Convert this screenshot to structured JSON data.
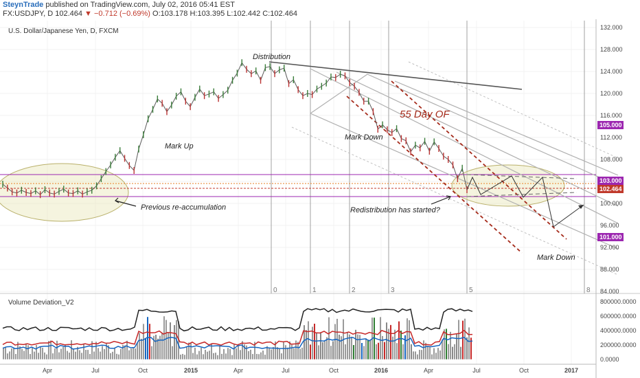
{
  "header": {
    "author": "SteynTrade",
    "published": " published on TradingView.com, July 02, 2016 05:41 EST",
    "symbol": "FX:USDJPY, D",
    "last": "102.464",
    "change": "−0.712 (−0.69%)",
    "ohlc": "O:103.178 H:103.395 L:102.442 C:102.464"
  },
  "chart_data": [
    {
      "type": "line",
      "title": "U.S. Dollar/Japanese Yen, D, FXCM",
      "x_ticks": [
        "Apr",
        "Jul",
        "Oct",
        "2015",
        "Apr",
        "Jul",
        "Oct",
        "2016",
        "Apr",
        "Jul",
        "Oct",
        "2017"
      ],
      "y_ticks": [
        "84.000",
        "88.000",
        "92.000",
        "96.000",
        "100.000",
        "104.000",
        "108.000",
        "112.000",
        "116.000",
        "120.000",
        "124.000",
        "128.000",
        "132.000"
      ],
      "ylim": [
        84,
        132
      ],
      "series": [
        {
          "values": [
            103.5,
            102.8,
            102.1,
            101.9,
            102.4,
            102.0,
            101.8,
            102.3,
            101.6,
            102.5,
            101.9,
            101.7,
            102.2,
            102.6,
            101.9,
            101.8,
            102.3,
            101.7,
            102.1,
            102.4,
            103.2,
            104.5,
            105.8,
            107.0,
            108.4,
            109.6,
            108.2,
            106.9,
            106.0,
            109.9,
            112.5,
            115.4,
            117.1,
            119.0,
            118.2,
            116.7,
            117.9,
            119.5,
            120.3,
            118.6,
            117.6,
            119.3,
            120.8,
            119.6,
            119.9,
            120.3,
            119.1,
            119.8,
            120.6,
            122.4,
            123.7,
            125.6,
            124.4,
            123.6,
            124.1,
            122.4,
            124.7,
            124.9,
            123.6,
            124.3,
            124.6,
            121.8,
            122.5,
            120.7,
            119.6,
            120.0,
            119.8,
            120.8,
            121.3,
            121.9,
            123.0,
            122.9,
            123.5,
            123.2,
            122.0,
            121.3,
            120.2,
            118.6,
            118.6,
            116.7,
            113.5,
            114.3,
            113.4,
            112.9,
            113.6,
            111.8,
            111.4,
            109.4,
            110.6,
            110.1,
            111.3,
            109.5,
            111.2,
            110.0,
            108.6,
            108.0,
            107.0,
            104.5,
            106.4,
            102.5
          ]
        }
      ],
      "annotations": [
        "Distribution",
        "Mark Up",
        "Mark Down",
        "55 Day OF",
        "Previous re-accumulation",
        "Redistribution has started?",
        "Mark Down"
      ],
      "wave_labels": [
        "0",
        "1",
        "2",
        "3",
        "5",
        "8"
      ],
      "price_tags": [
        {
          "label": "105.000",
          "color": "#9c27b0"
        },
        {
          "label": "103.000",
          "color": "#9c27b0"
        },
        {
          "label": "102.464",
          "color": "#c0392b"
        },
        {
          "label": "101.000",
          "color": "#9c27b0"
        }
      ],
      "grid": true
    },
    {
      "type": "bar",
      "title": "Volume Deviation_V2",
      "y_ticks": [
        "0.0000",
        "200000.0000",
        "400000.0000",
        "600000.0000",
        "800000.0000"
      ],
      "ylim": [
        -50000,
        830000
      ]
    }
  ]
}
